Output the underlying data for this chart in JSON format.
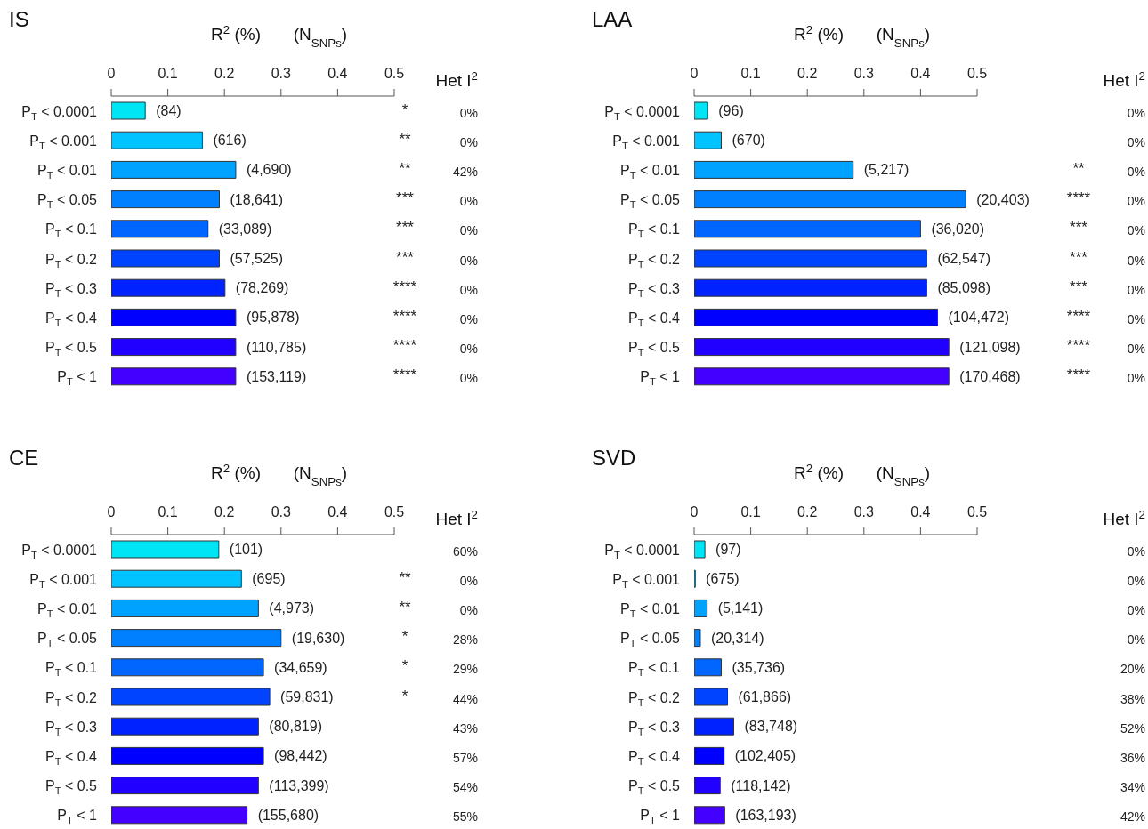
{
  "chart_data": [
    {
      "type": "bar",
      "orientation": "horizontal",
      "title": "IS",
      "xlabel": "R$^{2}$ (%)",
      "categories": [
        "P$_{T}$ < 0.0001",
        "P$_{T}$ < 0.001",
        "P$_{T}$ < 0.01",
        "P$_{T}$ < 0.05",
        "P$_{T}$ < 0.1",
        "P$_{T}$ < 0.2",
        "P$_{T}$ < 0.3",
        "P$_{T}$ < 0.4",
        "P$_{T}$ < 0.5",
        "P$_{T}$ < 1"
      ],
      "values": [
        0.06,
        0.161,
        0.22,
        0.191,
        0.171,
        0.191,
        0.201,
        0.22,
        0.22,
        0.22
      ],
      "colors": [
        "#00e5f5",
        "#00c3ff",
        "#00a2ff",
        "#0080ff",
        "#0066ff",
        "#0044ff",
        "#0022ff",
        "#0000ff",
        "#2200ff",
        "#4400ff"
      ],
      "xlim": [
        0,
        0.5
      ],
      "xticks": [
        0,
        0.1,
        0.2,
        0.3,
        0.4,
        0.5
      ],
      "annotations": [
        "(N$_{SNPs}$)",
        "Het I$^{2}$",
        "(84)",
        "(616)",
        "(4,690)",
        "(18,641)",
        "(33,089)",
        "(57,525)",
        "(78,269)",
        "(95,878)",
        "(110,785)",
        "(153,119)",
        "*",
        "**",
        "**",
        "***",
        "***",
        "***",
        "****",
        "****",
        "****",
        "****",
        "0%",
        "0%",
        "42%",
        "0%",
        "0%",
        "0%",
        "0%",
        "0%",
        "0%",
        "0%"
      ]
    },
    {
      "type": "bar",
      "orientation": "horizontal",
      "title": "LAA",
      "xlabel": "R$^{2}$ (%)",
      "categories": [
        "P$_{T}$ < 0.0001",
        "P$_{T}$ < 0.001",
        "P$_{T}$ < 0.01",
        "P$_{T}$ < 0.05",
        "P$_{T}$ < 0.1",
        "P$_{T}$ < 0.2",
        "P$_{T}$ < 0.3",
        "P$_{T}$ < 0.4",
        "P$_{T}$ < 0.5",
        "P$_{T}$ < 1"
      ],
      "values": [
        0.024,
        0.048,
        0.281,
        0.48,
        0.4,
        0.411,
        0.411,
        0.43,
        0.45,
        0.45
      ],
      "colors": [
        "#00e5f5",
        "#00c3ff",
        "#00a2ff",
        "#0080ff",
        "#0066ff",
        "#0044ff",
        "#0022ff",
        "#0000ff",
        "#2200ff",
        "#4400ff"
      ],
      "xlim": [
        0,
        0.5
      ],
      "xticks": [
        0,
        0.1,
        0.2,
        0.3,
        0.4,
        0.5
      ],
      "annotations": [
        "(N$_{SNPs}$)",
        "Het I$^{2}$",
        "(96)",
        "(670)",
        "(5,217)",
        "(20,403)",
        "(36,020)",
        "(62,547)",
        "(85,098)",
        "(104,472)",
        "(121,098)",
        "(170,468)",
        null,
        null,
        "**",
        "****",
        "***",
        "***",
        "***",
        "****",
        "****",
        "****",
        "0%",
        "0%",
        "0%",
        "0%",
        "0%",
        "0%",
        "0%",
        "0%",
        "0%",
        "0%"
      ]
    },
    {
      "type": "bar",
      "orientation": "horizontal",
      "title": "CE",
      "xlabel": "R$^{2}$ (%)",
      "categories": [
        "P$_{T}$ < 0.0001",
        "P$_{T}$ < 0.001",
        "P$_{T}$ < 0.01",
        "P$_{T}$ < 0.05",
        "P$_{T}$ < 0.1",
        "P$_{T}$ < 0.2",
        "P$_{T}$ < 0.3",
        "P$_{T}$ < 0.4",
        "P$_{T}$ < 0.5",
        "P$_{T}$ < 1"
      ],
      "values": [
        0.19,
        0.23,
        0.26,
        0.3,
        0.269,
        0.28,
        0.26,
        0.269,
        0.26,
        0.24
      ],
      "colors": [
        "#00e5f5",
        "#00c3ff",
        "#00a2ff",
        "#0080ff",
        "#0066ff",
        "#0044ff",
        "#0022ff",
        "#0000ff",
        "#2200ff",
        "#4400ff"
      ],
      "xlim": [
        0,
        0.5
      ],
      "xticks": [
        0,
        0.1,
        0.2,
        0.3,
        0.4,
        0.5
      ],
      "annotations": [
        "(N$_{SNPs}$)",
        "Het I$^{2}$",
        "(101)",
        "(695)",
        "(4,973)",
        "(19,630)",
        "(34,659)",
        "(59,831)",
        "(80,819)",
        "(98,442)",
        "(113,399)",
        "(155,680)",
        null,
        "**",
        "**",
        "*",
        "*",
        "*",
        null,
        null,
        null,
        null,
        "60%",
        "0%",
        "0%",
        "28%",
        "29%",
        "44%",
        "43%",
        "57%",
        "54%",
        "55%"
      ]
    },
    {
      "type": "bar",
      "orientation": "horizontal",
      "title": "SVD",
      "xlabel": "R$^{2}$ (%)",
      "categories": [
        "P$_{T}$ < 0.0001",
        "P$_{T}$ < 0.001",
        "P$_{T}$ < 0.01",
        "P$_{T}$ < 0.05",
        "P$_{T}$ < 0.1",
        "P$_{T}$ < 0.2",
        "P$_{T}$ < 0.3",
        "P$_{T}$ < 0.4",
        "P$_{T}$ < 0.5",
        "P$_{T}$ < 1"
      ],
      "values": [
        0.019,
        0.002,
        0.023,
        0.011,
        0.048,
        0.059,
        0.07,
        0.053,
        0.046,
        0.054
      ],
      "colors": [
        "#00e5f5",
        "#00c3ff",
        "#00a2ff",
        "#0080ff",
        "#0066ff",
        "#0044ff",
        "#0022ff",
        "#0000ff",
        "#2200ff",
        "#4400ff"
      ],
      "xlim": [
        0,
        0.5
      ],
      "xticks": [
        0,
        0.1,
        0.2,
        0.3,
        0.4,
        0.5
      ],
      "annotations": [
        "(N$_{SNPs}$)",
        "Het I$^{2}$",
        "(97)",
        "(675)",
        "(5,141)",
        "(20,314)",
        "(35,736)",
        "(61,866)",
        "(83,748)",
        "(102,405)",
        "(118,142)",
        "(163,193)",
        null,
        null,
        null,
        null,
        null,
        null,
        null,
        null,
        null,
        null,
        "0%",
        "0%",
        "0%",
        "0%",
        "20%",
        "38%",
        "52%",
        "36%",
        "34%",
        "42%"
      ]
    }
  ]
}
